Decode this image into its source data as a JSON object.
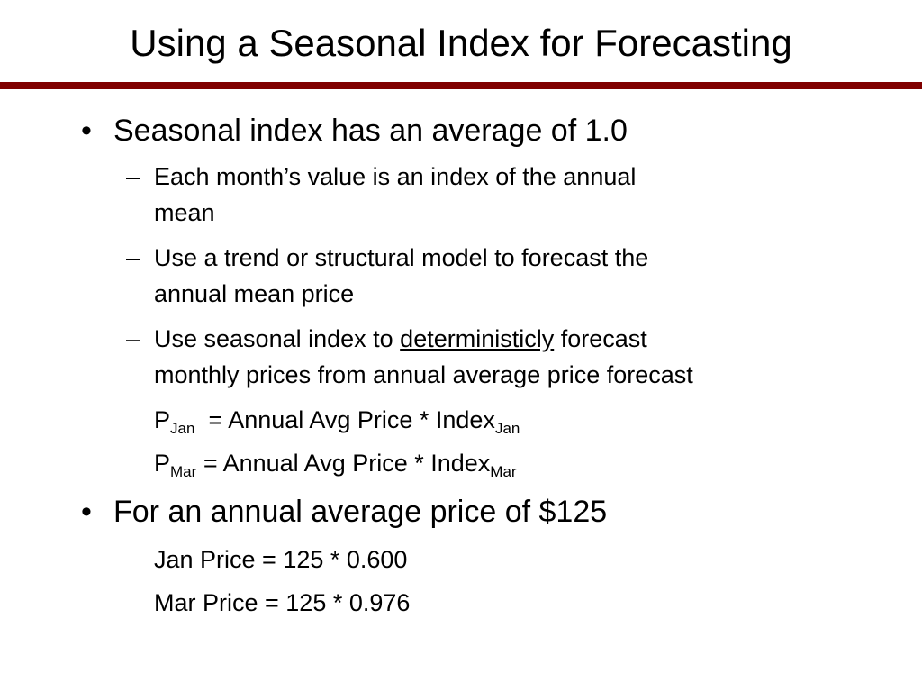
{
  "slide": {
    "title": "Using a Seasonal Index for Forecasting",
    "bullet_glyph": "•",
    "dash_glyph": "–",
    "colors": {
      "title_rule": "#800000",
      "text": "#000000",
      "background": "#ffffff"
    },
    "bullets": [
      {
        "text": "Seasonal index has an average of 1.0",
        "subitems": [
          {
            "line1": "Each month’s value is an index of the annual",
            "line2": "mean"
          },
          {
            "line1": "Use a trend or structural model to forecast the",
            "line2": "annual mean price"
          },
          {
            "prefix": "Use seasonal index to ",
            "underlined": "deterministicly",
            "suffix": " forecast",
            "line2": "monthly prices from annual average price forecast"
          }
        ],
        "equations": [
          {
            "lhs": "P",
            "lhs_sub": "Jan",
            "rhs": "= Annual Avg Price * Index",
            "rhs_sub": "Jan"
          },
          {
            "lhs": "P",
            "lhs_sub": "Mar",
            "rhs": "= Annual Avg Price * Index",
            "rhs_sub": "Mar"
          }
        ]
      },
      {
        "text": "For an annual average price of $125",
        "lines": [
          "Jan Price = 125 * 0.600",
          "Mar Price = 125 * 0.976"
        ]
      }
    ]
  }
}
